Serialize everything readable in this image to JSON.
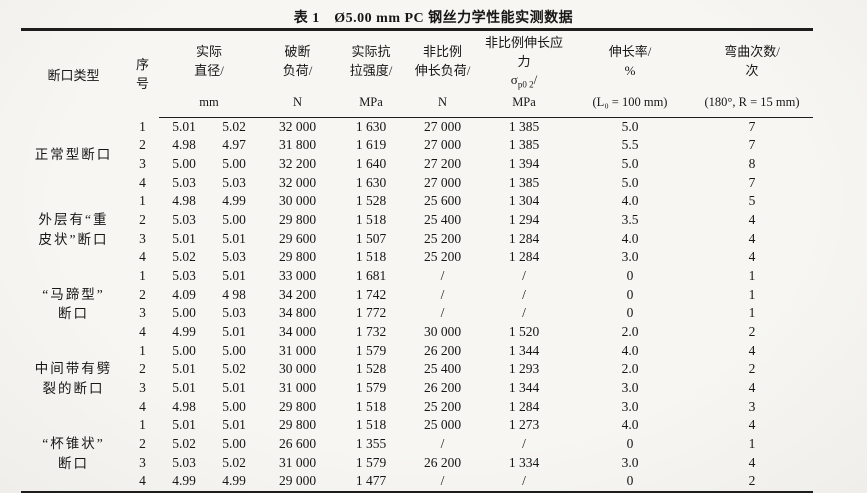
{
  "title": "表 1　Ø5.00 mm PC 钢丝力学性能实测数据",
  "colors": {
    "paper": "#f5f4f0",
    "ink": "#161616",
    "rule": "#1d1d1d"
  },
  "table": {
    "header": {
      "fracture_type": "断口类型",
      "serial": "序\n号",
      "diameter": {
        "line": "实际\n直径/",
        "unit": "mm"
      },
      "breaking_load": {
        "line": "破断\n负荷/",
        "unit": "N"
      },
      "tensile_strength": {
        "line": "实际抗\n拉强度/",
        "unit": "MPa"
      },
      "nonprop_load": {
        "line": "非比例\n伸长负荷/",
        "unit": "N"
      },
      "nonprop_stress": {
        "line1": "非比例伸长应力",
        "sigma": "σ",
        "sigma_sub": "p0 2",
        "slash": "/",
        "unit": "MPa"
      },
      "elongation": {
        "line": "伸长率/\n%",
        "unit": "(L₀ = 100 mm)"
      },
      "bending": {
        "line": "弯曲次数/\n次",
        "unit": "(180°, R = 15 mm)"
      }
    },
    "groups": [
      {
        "label": "正常型断口",
        "rows": [
          [
            "1",
            "5.01",
            "5.02",
            "32 000",
            "1 630",
            "27 000",
            "1 385",
            "5.0",
            "7"
          ],
          [
            "2",
            "4.98",
            "4.97",
            "31 800",
            "1 619",
            "27 000",
            "1 385",
            "5.5",
            "7"
          ],
          [
            "3",
            "5.00",
            "5.00",
            "32 200",
            "1 640",
            "27 200",
            "1 394",
            "5.0",
            "8"
          ],
          [
            "4",
            "5.03",
            "5.03",
            "32 000",
            "1 630",
            "27 000",
            "1 385",
            "5.0",
            "7"
          ]
        ]
      },
      {
        "label": "外层有“重\n皮状”断口",
        "rows": [
          [
            "1",
            "4.98",
            "4.99",
            "30 000",
            "1 528",
            "25 600",
            "1 304",
            "4.0",
            "5"
          ],
          [
            "2",
            "5.03",
            "5.00",
            "29 800",
            "1 518",
            "25 400",
            "1 294",
            "3.5",
            "4"
          ],
          [
            "3",
            "5.01",
            "5.01",
            "29 600",
            "1 507",
            "25 200",
            "1 284",
            "4.0",
            "4"
          ],
          [
            "4",
            "5.02",
            "5.03",
            "29 800",
            "1 518",
            "25 200",
            "1 284",
            "3.0",
            "4"
          ]
        ]
      },
      {
        "label": "“马蹄型”\n断口",
        "rows": [
          [
            "1",
            "5.03",
            "5.01",
            "33 000",
            "1 681",
            "/",
            "/",
            "0",
            "1"
          ],
          [
            "2",
            "4.09",
            "4 98",
            "34 200",
            "1 742",
            "/",
            "/",
            "0",
            "1"
          ],
          [
            "3",
            "5.00",
            "5.03",
            "34 800",
            "1 772",
            "/",
            "/",
            "0",
            "1"
          ],
          [
            "4",
            "4.99",
            "5.01",
            "34 000",
            "1 732",
            "30 000",
            "1 520",
            "2.0",
            "2"
          ]
        ]
      },
      {
        "label": "中间带有劈\n裂的断口",
        "rows": [
          [
            "1",
            "5.00",
            "5.00",
            "31 000",
            "1 579",
            "26 200",
            "1 344",
            "4.0",
            "4"
          ],
          [
            "2",
            "5.01",
            "5.02",
            "30 000",
            "1 528",
            "25 400",
            "1 293",
            "2.0",
            "2"
          ],
          [
            "3",
            "5.01",
            "5.01",
            "31 000",
            "1 579",
            "26 200",
            "1 344",
            "3.0",
            "4"
          ],
          [
            "4",
            "4.98",
            "5.00",
            "29 800",
            "1 518",
            "25 200",
            "1 284",
            "3.0",
            "3"
          ]
        ]
      },
      {
        "label": "“杯锥状”\n断口",
        "rows": [
          [
            "1",
            "5.01",
            "5.01",
            "29 800",
            "1 518",
            "25 000",
            "1 273",
            "4.0",
            "4"
          ],
          [
            "2",
            "5.02",
            "5.00",
            "26 600",
            "1 355",
            "/",
            "/",
            "0",
            "1"
          ],
          [
            "3",
            "5.03",
            "5.02",
            "31 000",
            "1 579",
            "26 200",
            "1 334",
            "3.0",
            "4"
          ],
          [
            "4",
            "4.99",
            "4.99",
            "29 000",
            "1 477",
            "/",
            "/",
            "0",
            "2"
          ]
        ]
      }
    ]
  }
}
